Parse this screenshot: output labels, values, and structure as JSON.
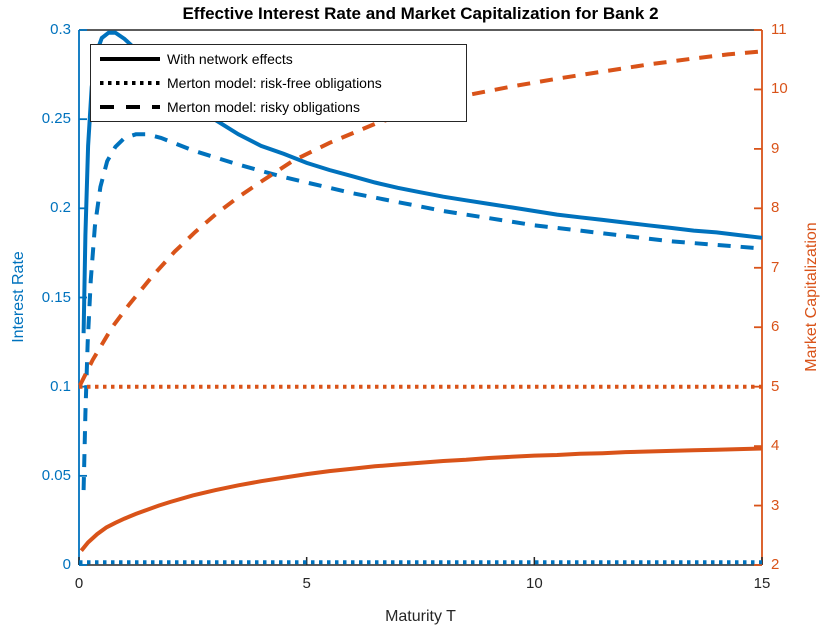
{
  "chart_data": {
    "type": "line",
    "title": "Effective Interest Rate and Market Capitalization for Bank 2",
    "xlabel": "Maturity T",
    "ylabel_left": "Interest Rate",
    "ylabel_right": "Market Capitalization",
    "x_range": [
      0,
      15
    ],
    "y_left_range": [
      0,
      0.3
    ],
    "y_right_range": [
      2,
      11
    ],
    "x_ticks": {
      "values": [
        0,
        5,
        10,
        15
      ],
      "labels": [
        "0",
        "5",
        "10",
        "15"
      ]
    },
    "y_left_ticks": {
      "values": [
        0,
        0.05,
        0.1,
        0.15,
        0.2,
        0.25,
        0.3
      ],
      "labels": [
        "0",
        "0.05",
        "0.1",
        "0.15",
        "0.2",
        "0.25",
        "0.3"
      ]
    },
    "y_right_ticks": {
      "values": [
        2,
        3,
        4,
        5,
        6,
        7,
        8,
        9,
        10,
        11
      ],
      "labels": [
        "2",
        "3",
        "4",
        "5",
        "6",
        "7",
        "8",
        "9",
        "10",
        "11"
      ]
    },
    "colors": {
      "left_axis": "#0072BD",
      "right_axis": "#D95319",
      "x_axis": "#262626",
      "legend_line": "#000000"
    },
    "legend": {
      "position": "top-left",
      "entries": [
        {
          "label": "With network effects",
          "style": "solid"
        },
        {
          "label": "Merton model: risk-free obligations",
          "style": "dotted"
        },
        {
          "label": "Merton model: risky obligations",
          "style": "dashed"
        }
      ]
    },
    "grid": false,
    "series": [
      {
        "name": "interest-rate-with-network-effects",
        "axis": "left",
        "color": "#0072BD",
        "style": "solid",
        "width": 4,
        "points": [
          [
            0.1,
            0.13
          ],
          [
            0.14,
            0.185
          ],
          [
            0.2,
            0.235
          ],
          [
            0.28,
            0.268
          ],
          [
            0.38,
            0.287
          ],
          [
            0.5,
            0.2955
          ],
          [
            0.65,
            0.2985
          ],
          [
            0.8,
            0.2985
          ],
          [
            1.0,
            0.295
          ],
          [
            1.25,
            0.289
          ],
          [
            1.5,
            0.2835
          ],
          [
            1.75,
            0.278
          ],
          [
            2.0,
            0.2715
          ],
          [
            2.5,
            0.26
          ],
          [
            3.0,
            0.2495
          ],
          [
            3.5,
            0.2415
          ],
          [
            4.0,
            0.235
          ],
          [
            4.5,
            0.2305
          ],
          [
            5.0,
            0.2255
          ],
          [
            5.5,
            0.2215
          ],
          [
            6.0,
            0.218
          ],
          [
            6.5,
            0.2145
          ],
          [
            7.0,
            0.2115
          ],
          [
            7.5,
            0.209
          ],
          [
            8.0,
            0.2065
          ],
          [
            8.5,
            0.2045
          ],
          [
            9.0,
            0.2025
          ],
          [
            9.5,
            0.2005
          ],
          [
            10.0,
            0.1985
          ],
          [
            10.5,
            0.1965
          ],
          [
            11.0,
            0.195
          ],
          [
            11.5,
            0.1935
          ],
          [
            12.0,
            0.192
          ],
          [
            12.5,
            0.1905
          ],
          [
            13.0,
            0.189
          ],
          [
            13.5,
            0.1875
          ],
          [
            14.0,
            0.1865
          ],
          [
            14.5,
            0.185
          ],
          [
            15.0,
            0.1835
          ]
        ]
      },
      {
        "name": "interest-rate-merton-risk-free",
        "axis": "left",
        "color": "#0072BD",
        "style": "dotted",
        "width": 4,
        "points": [
          [
            0,
            0.0015
          ],
          [
            15,
            0.0015
          ]
        ]
      },
      {
        "name": "interest-rate-merton-risky",
        "axis": "left",
        "color": "#0072BD",
        "style": "dashed",
        "width": 4,
        "points": [
          [
            0.1,
            0.042
          ],
          [
            0.14,
            0.085
          ],
          [
            0.19,
            0.125
          ],
          [
            0.26,
            0.16
          ],
          [
            0.35,
            0.19
          ],
          [
            0.47,
            0.212
          ],
          [
            0.62,
            0.2265
          ],
          [
            0.8,
            0.2345
          ],
          [
            1.0,
            0.2395
          ],
          [
            1.25,
            0.2415
          ],
          [
            1.5,
            0.2415
          ],
          [
            1.8,
            0.2395
          ],
          [
            2.1,
            0.2365
          ],
          [
            2.5,
            0.2325
          ],
          [
            3.0,
            0.2285
          ],
          [
            3.5,
            0.2245
          ],
          [
            4.0,
            0.221
          ],
          [
            4.5,
            0.2175
          ],
          [
            5.0,
            0.2145
          ],
          [
            5.5,
            0.2115
          ],
          [
            6.0,
            0.2085
          ],
          [
            6.5,
            0.206
          ],
          [
            7.0,
            0.2035
          ],
          [
            7.5,
            0.201
          ],
          [
            8.0,
            0.1985
          ],
          [
            8.5,
            0.1965
          ],
          [
            9.0,
            0.1945
          ],
          [
            9.5,
            0.1925
          ],
          [
            10.0,
            0.1905
          ],
          [
            10.5,
            0.189
          ],
          [
            11.0,
            0.1875
          ],
          [
            11.5,
            0.186
          ],
          [
            12.0,
            0.1845
          ],
          [
            12.5,
            0.183
          ],
          [
            13.0,
            0.1815
          ],
          [
            13.5,
            0.1805
          ],
          [
            14.0,
            0.1795
          ],
          [
            14.5,
            0.1785
          ],
          [
            15.0,
            0.1775
          ]
        ]
      },
      {
        "name": "market-cap-with-network-effects",
        "axis": "right",
        "color": "#D95319",
        "style": "solid",
        "width": 4,
        "points": [
          [
            0.05,
            2.24
          ],
          [
            0.2,
            2.38
          ],
          [
            0.4,
            2.52
          ],
          [
            0.6,
            2.63
          ],
          [
            0.8,
            2.71
          ],
          [
            1.0,
            2.78
          ],
          [
            1.25,
            2.86
          ],
          [
            1.5,
            2.93
          ],
          [
            1.75,
            3.0
          ],
          [
            2.0,
            3.06
          ],
          [
            2.5,
            3.17
          ],
          [
            3.0,
            3.26
          ],
          [
            3.5,
            3.34
          ],
          [
            4.0,
            3.41
          ],
          [
            4.5,
            3.47
          ],
          [
            5.0,
            3.53
          ],
          [
            5.5,
            3.58
          ],
          [
            6.0,
            3.62
          ],
          [
            6.5,
            3.66
          ],
          [
            7.0,
            3.69
          ],
          [
            7.5,
            3.72
          ],
          [
            8.0,
            3.75
          ],
          [
            8.5,
            3.77
          ],
          [
            9.0,
            3.8
          ],
          [
            9.5,
            3.82
          ],
          [
            10.0,
            3.84
          ],
          [
            10.5,
            3.85
          ],
          [
            11.0,
            3.87
          ],
          [
            11.5,
            3.88
          ],
          [
            12.0,
            3.9
          ],
          [
            12.5,
            3.91
          ],
          [
            13.0,
            3.92
          ],
          [
            13.5,
            3.93
          ],
          [
            14.0,
            3.94
          ],
          [
            14.5,
            3.95
          ],
          [
            15.0,
            3.96
          ]
        ]
      },
      {
        "name": "market-cap-merton-risk-free",
        "axis": "right",
        "color": "#D95319",
        "style": "dotted",
        "width": 4,
        "points": [
          [
            0,
            5.0
          ],
          [
            15,
            5.0
          ]
        ]
      },
      {
        "name": "market-cap-merton-risky",
        "axis": "right",
        "color": "#D95319",
        "style": "dashed",
        "width": 4,
        "points": [
          [
            0.02,
            5.02
          ],
          [
            0.3,
            5.45
          ],
          [
            0.73,
            6.0
          ],
          [
            1.1,
            6.38
          ],
          [
            1.6,
            6.85
          ],
          [
            2.1,
            7.27
          ],
          [
            2.55,
            7.6
          ],
          [
            3.0,
            7.9
          ],
          [
            3.5,
            8.19
          ],
          [
            4.0,
            8.45
          ],
          [
            4.7,
            8.8
          ],
          [
            5.5,
            9.1
          ],
          [
            6.5,
            9.42
          ],
          [
            7.5,
            9.68
          ],
          [
            8.5,
            9.9
          ],
          [
            9.5,
            10.05
          ],
          [
            10.5,
            10.18
          ],
          [
            11.5,
            10.3
          ],
          [
            12.5,
            10.42
          ],
          [
            13.5,
            10.52
          ],
          [
            14.25,
            10.59
          ],
          [
            15.0,
            10.64
          ]
        ]
      }
    ]
  }
}
